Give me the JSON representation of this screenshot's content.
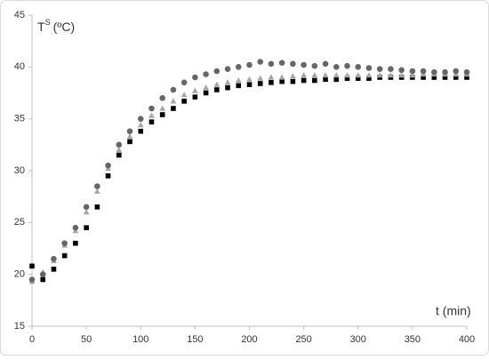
{
  "chart_data": {
    "type": "scatter",
    "y_label": "T",
    "y_label_sup": "S",
    "y_label_unit": "(ºC)",
    "x_label": "t (min)",
    "xlim": [
      0,
      400
    ],
    "xticks": [
      0,
      50,
      100,
      150,
      200,
      250,
      300,
      350,
      400
    ],
    "ylim": [
      15,
      45
    ],
    "yticks": [
      15,
      20,
      25,
      30,
      35,
      40,
      45
    ],
    "x": [
      0,
      10,
      20,
      30,
      40,
      50,
      60,
      70,
      80,
      90,
      100,
      110,
      120,
      130,
      140,
      150,
      160,
      170,
      180,
      190,
      200,
      210,
      220,
      230,
      240,
      250,
      260,
      270,
      280,
      290,
      300,
      310,
      320,
      330,
      340,
      350,
      360,
      370,
      380,
      390,
      400
    ],
    "series": [
      {
        "color": "#000000",
        "marker": "square",
        "values": [
          20.8,
          19.5,
          20.5,
          21.8,
          23,
          24.5,
          26.5,
          29.5,
          31.5,
          32.8,
          33.8,
          34.7,
          35.4,
          36,
          36.7,
          37.1,
          37.5,
          37.8,
          38,
          38.2,
          38.3,
          38.4,
          38.5,
          38.6,
          38.6,
          38.7,
          38.7,
          38.8,
          38.8,
          38.9,
          38.9,
          38.9,
          39,
          39,
          39,
          39,
          39,
          39,
          39,
          39,
          39
        ]
      },
      {
        "color": "#a6a6a6",
        "marker": "triangle",
        "values": [
          19.3,
          20.2,
          21.3,
          22.8,
          24.2,
          26,
          28,
          30.2,
          32,
          33.3,
          34.4,
          35.3,
          36,
          36.7,
          37.3,
          37.7,
          38,
          38.3,
          38.5,
          38.7,
          38.8,
          38.9,
          39,
          39,
          39.1,
          39.2,
          39.2,
          39.2,
          39.2,
          39.2,
          39.2,
          39.2,
          39.2,
          39.2,
          39.2,
          39.2,
          39.3,
          39.3,
          39.3,
          39.3,
          39.3
        ]
      },
      {
        "color": "#666666",
        "marker": "circle",
        "values": [
          19.5,
          20,
          21.5,
          23,
          24.5,
          26.5,
          28.5,
          30.5,
          32.5,
          33.8,
          35,
          36,
          37,
          37.8,
          38.5,
          39,
          39.3,
          39.6,
          39.8,
          40,
          40.2,
          40.5,
          40.3,
          40.4,
          40.3,
          40.2,
          40.1,
          40.3,
          40,
          40.1,
          40,
          39.9,
          39.8,
          39.8,
          39.7,
          39.6,
          39.6,
          39.5,
          39.5,
          39.6,
          39.5
        ]
      }
    ]
  }
}
